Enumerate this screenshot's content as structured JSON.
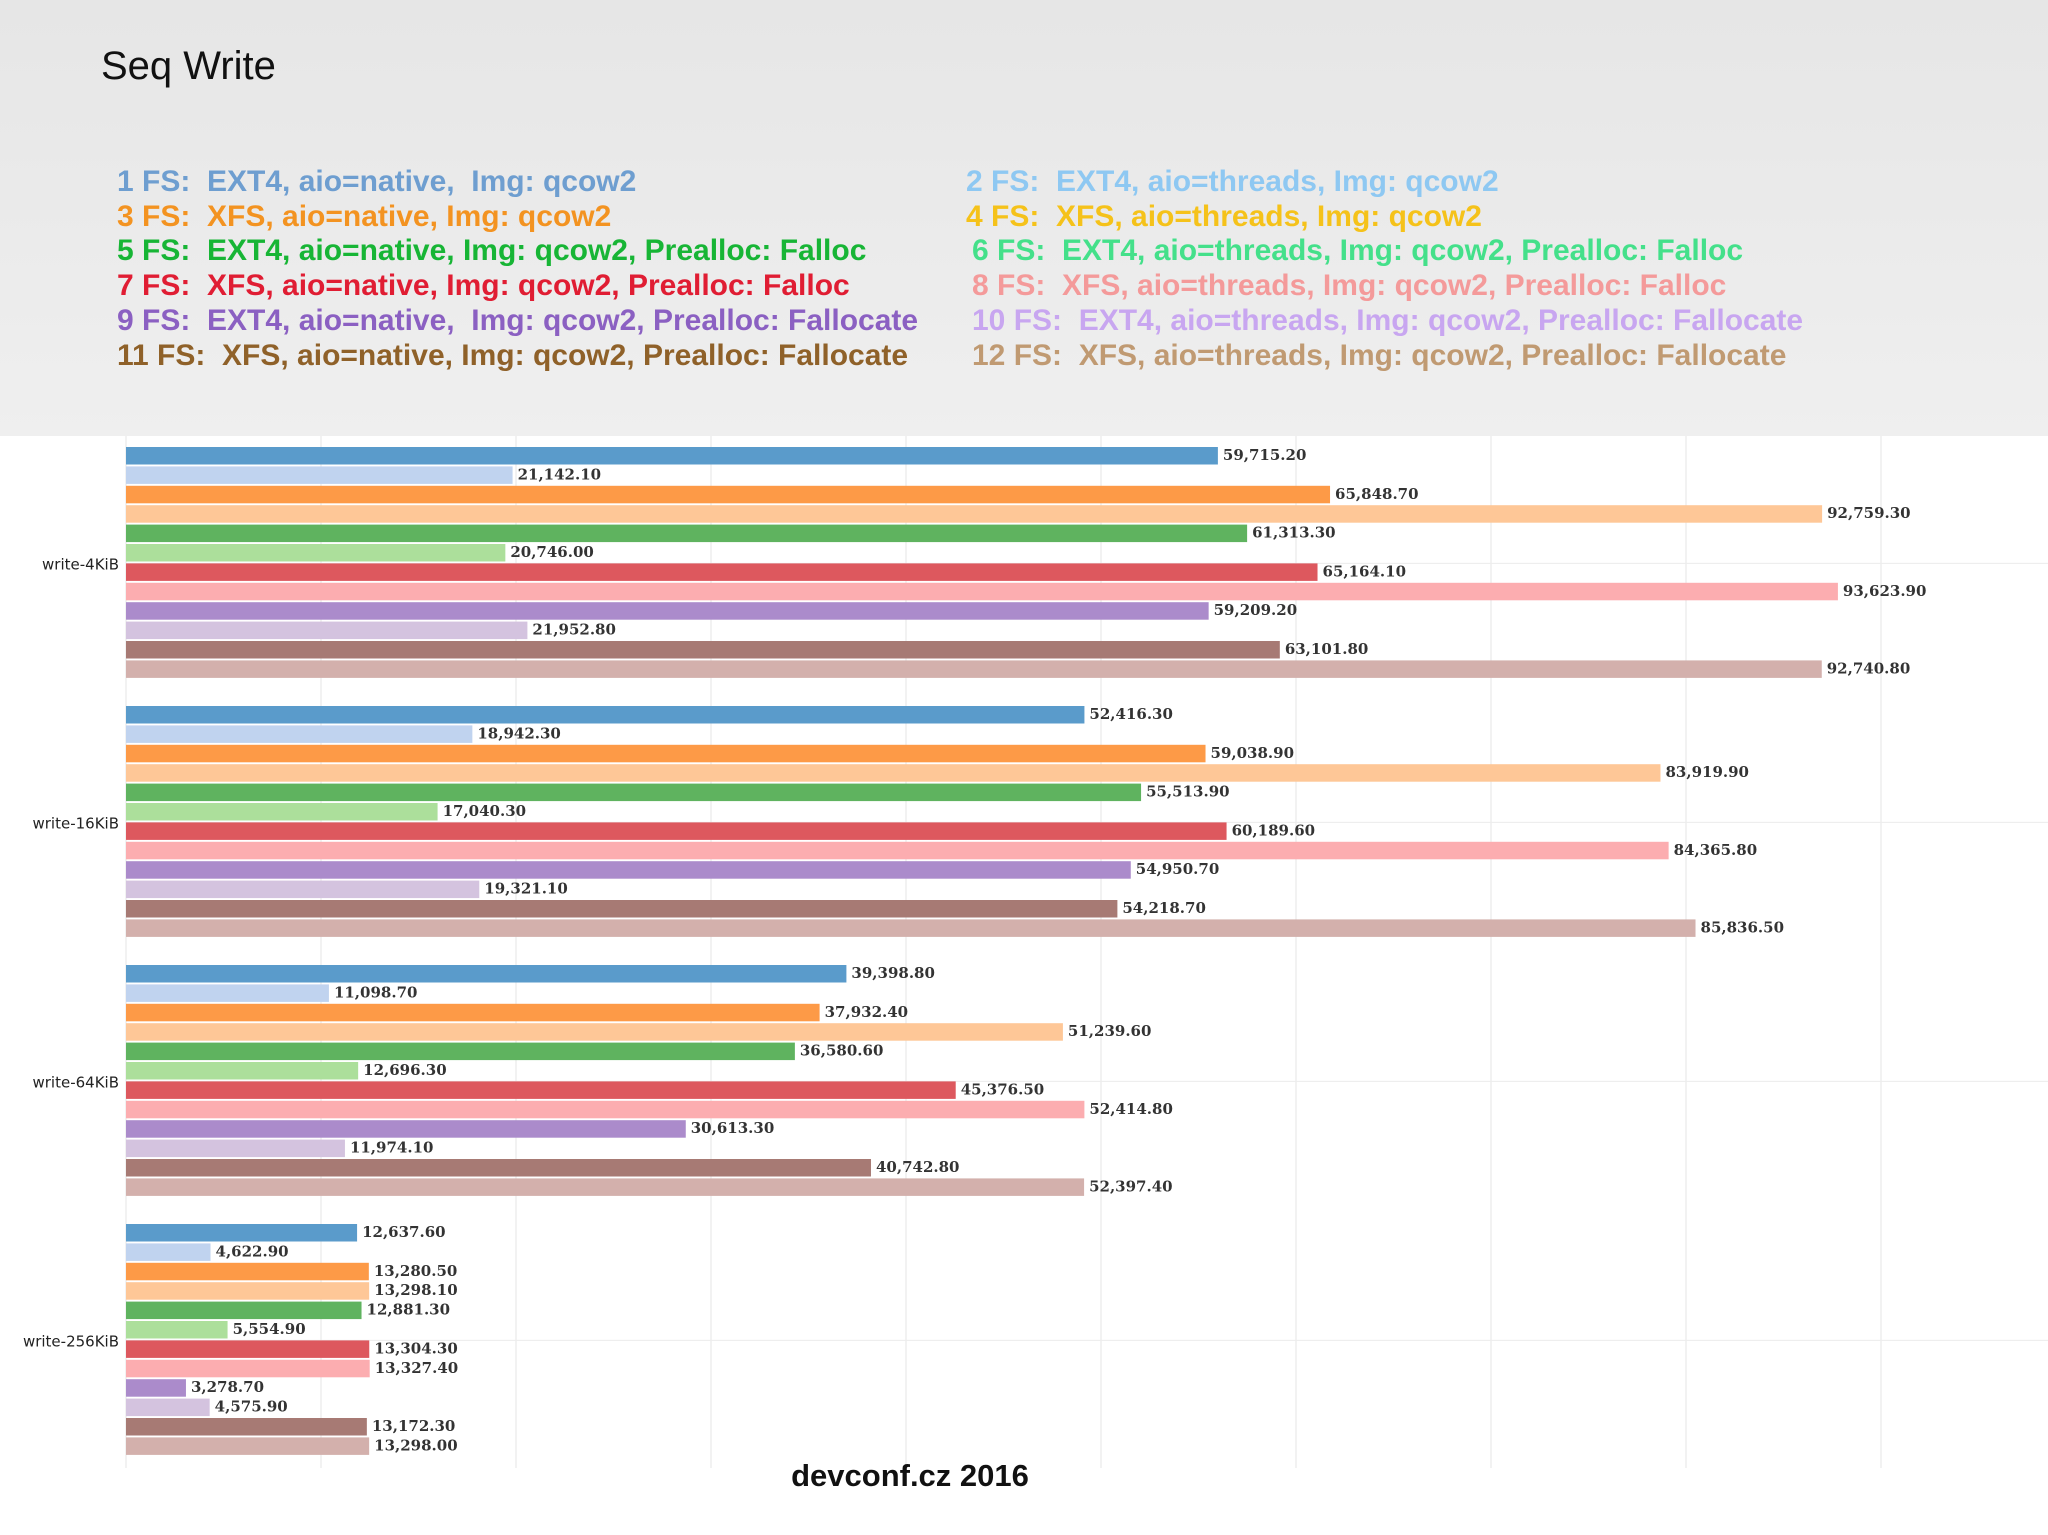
{
  "title": "Seq Write",
  "legend": [
    {
      "text": "1 FS:  EXT4, aio=native,  Img: qcow2",
      "color": "#6e9ed0"
    },
    {
      "text": "2 FS:  EXT4, aio=threads, Img: qcow2",
      "color": "#8ec8f2"
    },
    {
      "text": "3 FS:  XFS, aio=native, Img: qcow2",
      "color": "#f39321"
    },
    {
      "text": "4 FS:  XFS, aio=threads, Img: qcow2",
      "color": "#f5c21a"
    },
    {
      "text": "5 FS:  EXT4, aio=native, Img: qcow2, Prealloc: Falloc",
      "color": "#17b535"
    },
    {
      "text": "6 FS:  EXT4, aio=threads, Img: qcow2, Prealloc: Falloc",
      "color": "#44e08a"
    },
    {
      "text": "7 FS:  XFS, aio=native, Img: qcow2, Prealloc: Falloc",
      "color": "#e01d33"
    },
    {
      "text": "8 FS:  XFS, aio=threads, Img: qcow2, Prealloc: Falloc",
      "color": "#f49a9a"
    },
    {
      "text": "9 FS:  EXT4, aio=native,  Img: qcow2, Prealloc: Fallocate",
      "color": "#8b60c2"
    },
    {
      "text": "10 FS:  EXT4, aio=threads, Img: qcow2, Prealloc: Fallocate",
      "color": "#c8a6f0"
    },
    {
      "text": "11 FS:  XFS, aio=native, Img: qcow2, Prealloc: Fallocate",
      "color": "#8f6129"
    },
    {
      "text": "12 FS:  XFS, aio=threads, Img: qcow2, Prealloc: Fallocate",
      "color": "#c09a72"
    }
  ],
  "footer": "devconf.cz 2016",
  "chart_data": {
    "type": "bar",
    "orientation": "horizontal",
    "categories": [
      "write-4KiB",
      "write-16KiB",
      "write-64KiB",
      "write-256KiB"
    ],
    "xlim": [
      0,
      100000
    ],
    "grid": true,
    "bar_colors": [
      "#5a9bcb",
      "#c0d3ef",
      "#fd9a47",
      "#fec797",
      "#5fb35f",
      "#acdf9b",
      "#dd585e",
      "#fcadb0",
      "#ab8bcb",
      "#d4c3df",
      "#a77a74",
      "#d3b0ac"
    ],
    "series": [
      {
        "values": [
          59715.2,
          52416.3,
          39398.8,
          12637.6
        ],
        "labels": [
          "59,715.20",
          "52,416.30",
          "39,398.80",
          "12,637.60"
        ]
      },
      {
        "values": [
          21142.1,
          18942.3,
          11098.7,
          4622.9
        ],
        "labels": [
          "21,142.10",
          "18,942.30",
          "11,098.70",
          "4,622.90"
        ]
      },
      {
        "values": [
          65848.7,
          59038.9,
          37932.4,
          13280.5
        ],
        "labels": [
          "65,848.70",
          "59,038.90",
          "37,932.40",
          "13,280.50"
        ]
      },
      {
        "values": [
          92759.3,
          83919.9,
          51239.6,
          13298.1
        ],
        "labels": [
          "92,759.30",
          "83,919.90",
          "51,239.60",
          "13,298.10"
        ]
      },
      {
        "values": [
          61313.3,
          55513.9,
          36580.6,
          12881.3
        ],
        "labels": [
          "61,313.30",
          "55,513.90",
          "36,580.60",
          "12,881.30"
        ]
      },
      {
        "values": [
          20746.0,
          17040.3,
          12696.3,
          5554.9
        ],
        "labels": [
          "20,746.00",
          "17,040.30",
          "12,696.30",
          "5,554.90"
        ]
      },
      {
        "values": [
          65164.1,
          60189.6,
          45376.5,
          13304.3
        ],
        "labels": [
          "65,164.10",
          "60,189.60",
          "45,376.50",
          "13,304.30"
        ]
      },
      {
        "values": [
          93623.9,
          84365.8,
          52414.8,
          13327.4
        ],
        "labels": [
          "93,623.90",
          "84,365.80",
          "52,414.80",
          "13,327.40"
        ]
      },
      {
        "values": [
          59209.2,
          54950.7,
          30613.3,
          3278.7
        ],
        "labels": [
          "59,209.20",
          "54,950.70",
          "30,613.30",
          "3,278.70"
        ]
      },
      {
        "values": [
          21952.8,
          19321.1,
          11974.1,
          4575.9
        ],
        "labels": [
          "21,952.80",
          "19,321.10",
          "11,974.10",
          "4,575.90"
        ]
      },
      {
        "values": [
          63101.8,
          54218.7,
          40742.8,
          13172.3
        ],
        "labels": [
          "63,101.80",
          "54,218.70",
          "40,742.80",
          "13,172.30"
        ]
      },
      {
        "values": [
          92740.8,
          85836.5,
          52397.4,
          13298.0
        ],
        "labels": [
          "92,740.80",
          "85,836.50",
          "52,397.40",
          "13,298.00"
        ]
      }
    ]
  }
}
